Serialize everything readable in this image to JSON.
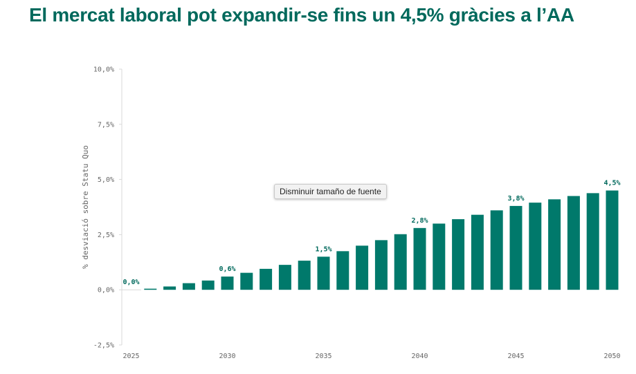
{
  "title": "El mercat laboral pot expandir-se fins un 4,5% gràcies a l’AA",
  "tooltip": "Disminuir tamaño de fuente",
  "colors": {
    "bar": "#00796b",
    "axis": "#d9d9d9",
    "text": "#666666",
    "title": "#00695c"
  },
  "chart_data": {
    "type": "bar",
    "ylabel": "% desviació sobre Statu Quo",
    "xlabel": "",
    "ylim": [
      -2.5,
      10.0
    ],
    "yticks": [
      -2.5,
      0.0,
      2.5,
      5.0,
      7.5,
      10.0
    ],
    "ytick_labels": [
      "-2,5%",
      "0,0%",
      "2,5%",
      "5,0%",
      "7,5%",
      "10,0%"
    ],
    "xtick_labels": [
      "2025",
      "2030",
      "2035",
      "2040",
      "2045",
      "2050"
    ],
    "xtick_years": [
      2025,
      2030,
      2035,
      2040,
      2045,
      2050
    ],
    "categories": [
      2025,
      2026,
      2027,
      2028,
      2029,
      2030,
      2031,
      2032,
      2033,
      2034,
      2035,
      2036,
      2037,
      2038,
      2039,
      2040,
      2041,
      2042,
      2043,
      2044,
      2045,
      2046,
      2047,
      2048,
      2049,
      2050
    ],
    "values": [
      0.0,
      0.05,
      0.15,
      0.3,
      0.42,
      0.6,
      0.77,
      0.95,
      1.13,
      1.32,
      1.5,
      1.75,
      2.0,
      2.25,
      2.52,
      2.8,
      3.0,
      3.2,
      3.4,
      3.6,
      3.8,
      3.95,
      4.1,
      4.25,
      4.38,
      4.5
    ],
    "data_labels": [
      {
        "year": 2025,
        "text": "0,0%"
      },
      {
        "year": 2030,
        "text": "0,6%"
      },
      {
        "year": 2035,
        "text": "1,5%"
      },
      {
        "year": 2040,
        "text": "2,8%"
      },
      {
        "year": 2045,
        "text": "3,8%"
      },
      {
        "year": 2050,
        "text": "4,5%"
      }
    ]
  }
}
